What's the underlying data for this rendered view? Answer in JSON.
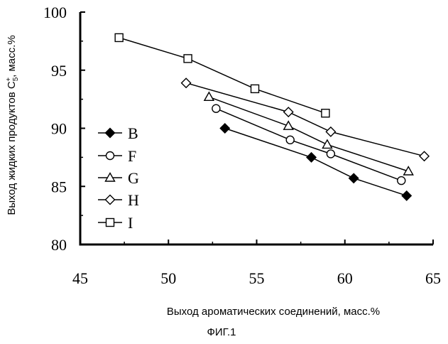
{
  "chart_data": {
    "type": "line",
    "xlabel": "Выход ароматических соединений, масс.%",
    "ylabel": "Выход жидких продуктов C5+, масс.%",
    "caption": "ФИГ.1",
    "xlim": [
      45,
      65
    ],
    "ylim": [
      80,
      100
    ],
    "x_ticks": [
      "45",
      "50",
      "55",
      "60",
      "65"
    ],
    "y_ticks": [
      "80",
      "85",
      "90",
      "95",
      "100"
    ],
    "grid": false,
    "legend_position": "left",
    "series": [
      {
        "name": "B",
        "marker": "filled-diamond",
        "points": [
          [
            53.2,
            90.0
          ],
          [
            58.1,
            87.5
          ],
          [
            60.5,
            85.7
          ],
          [
            63.5,
            84.2
          ]
        ]
      },
      {
        "name": "F",
        "marker": "open-circle",
        "points": [
          [
            52.7,
            91.7
          ],
          [
            56.9,
            89.0
          ],
          [
            59.2,
            87.8
          ],
          [
            63.2,
            85.5
          ]
        ]
      },
      {
        "name": "G",
        "marker": "open-triangle",
        "points": [
          [
            52.3,
            92.7
          ],
          [
            56.8,
            90.2
          ],
          [
            59.0,
            88.6
          ],
          [
            63.6,
            86.3
          ]
        ]
      },
      {
        "name": "H",
        "marker": "open-diamond",
        "points": [
          [
            51.0,
            93.9
          ],
          [
            56.8,
            91.4
          ],
          [
            59.2,
            89.7
          ],
          [
            64.5,
            87.6
          ]
        ]
      },
      {
        "name": "I",
        "marker": "open-square",
        "points": [
          [
            47.2,
            97.8
          ],
          [
            51.1,
            96.0
          ],
          [
            54.9,
            93.4
          ],
          [
            58.9,
            91.3
          ]
        ]
      }
    ]
  }
}
